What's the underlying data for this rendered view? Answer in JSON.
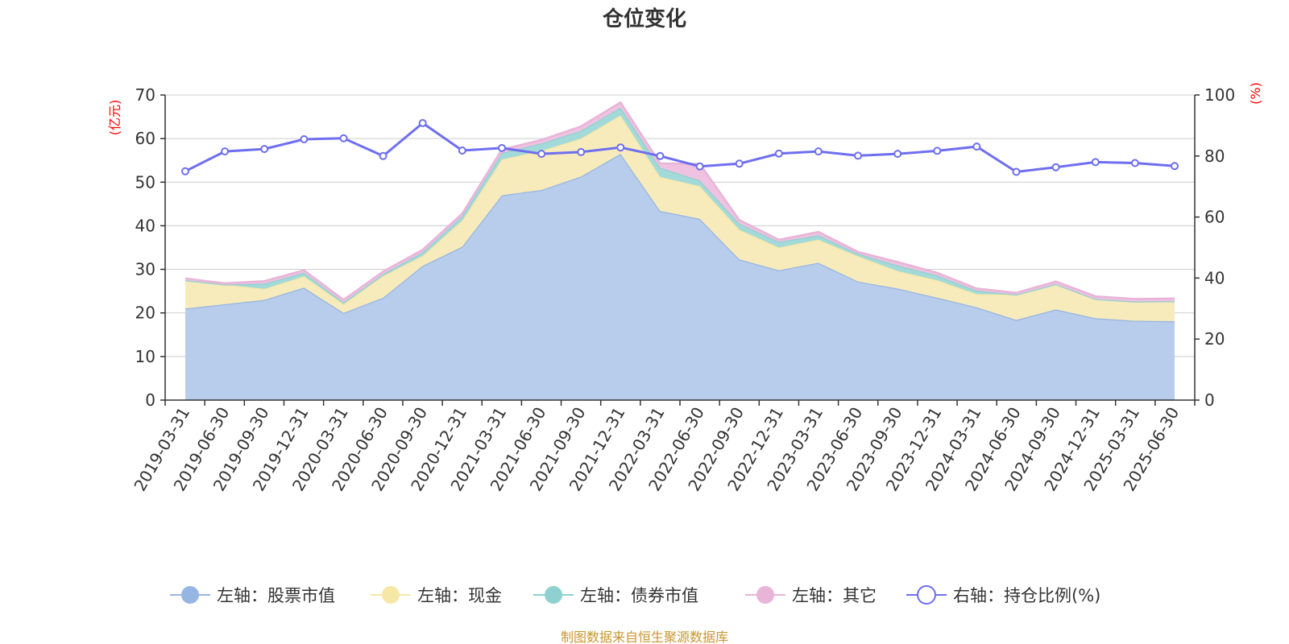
{
  "chart_data": {
    "type": "area",
    "title": "仓位变化",
    "y_left_unit": "(亿元)",
    "y_right_unit": "(%)",
    "ylim_left": [
      0,
      70
    ],
    "yticks_left": [
      "0",
      "10",
      "20",
      "30",
      "40",
      "50",
      "60",
      "70"
    ],
    "ylim_right": [
      0,
      100
    ],
    "yticks_right": [
      "0",
      "20",
      "40",
      "60",
      "80",
      "100"
    ],
    "grid": true,
    "legend_position": "bottom",
    "categories": [
      "2019-03-31",
      "2019-06-30",
      "2019-09-30",
      "2019-12-31",
      "2020-03-31",
      "2020-06-30",
      "2020-09-30",
      "2020-12-31",
      "2021-03-31",
      "2021-06-30",
      "2021-09-30",
      "2021-12-31",
      "2022-03-31",
      "2022-06-30",
      "2022-09-30",
      "2022-12-31",
      "2023-03-31",
      "2023-06-30",
      "2023-09-30",
      "2023-12-31",
      "2024-03-31",
      "2024-06-30",
      "2024-09-30",
      "2024-12-31",
      "2025-03-31",
      "2025-06-30"
    ],
    "stacked_series": [
      {
        "name": "左轴：股票市值",
        "axis": "left",
        "color": "#97b5e2",
        "fill": "#b7cdeb",
        "values": [
          21.0,
          22.0,
          23.0,
          25.8,
          20.0,
          23.5,
          30.8,
          35.2,
          47.0,
          48.2,
          51.3,
          56.5,
          43.4,
          41.6,
          32.3,
          29.8,
          31.5,
          27.2,
          25.6,
          23.5,
          21.3,
          18.4,
          20.8,
          18.8,
          18.2,
          18.1
        ]
      },
      {
        "name": "左轴：现金",
        "axis": "left",
        "color": "#f6e7a6",
        "fill": "#f8ebbb",
        "values": [
          6.5,
          4.5,
          2.5,
          2.6,
          2.0,
          5.0,
          2.3,
          6.0,
          8.2,
          9.0,
          8.7,
          8.8,
          7.8,
          7.5,
          6.8,
          5.2,
          5.3,
          5.8,
          4.0,
          4.0,
          3.0,
          5.8,
          5.8,
          4.4,
          4.4,
          4.6
        ]
      },
      {
        "name": "左轴：债券市值",
        "axis": "left",
        "color": "#8fd1d0",
        "fill": "#a3dad9",
        "values": [
          0,
          0,
          1.2,
          0.8,
          0.4,
          0.4,
          0.8,
          1.0,
          1.5,
          1.7,
          1.8,
          1.8,
          2.1,
          1.3,
          1.4,
          1.3,
          1.0,
          0.6,
          1.3,
          1.1,
          0.8,
          0,
          0,
          0,
          0,
          0
        ]
      },
      {
        "name": "左轴：其它",
        "axis": "left",
        "color": "#e8b4d8",
        "fill": "#eec2e0",
        "values": [
          0.4,
          0.3,
          0.6,
          0.6,
          0.6,
          0.6,
          0.6,
          0.6,
          0.8,
          0.8,
          1.0,
          1.2,
          1.0,
          3.8,
          0.8,
          0.5,
          0.8,
          0.4,
          0.8,
          0.6,
          0.5,
          0.4,
          0.6,
          0.6,
          0.6,
          0.6
        ]
      }
    ],
    "line_series": [
      {
        "name": "右轴：持仓比例(%)",
        "axis": "right",
        "color": "#6e6ef0",
        "values": [
          75.0,
          81.5,
          82.3,
          85.5,
          85.8,
          80.0,
          90.8,
          81.8,
          82.6,
          80.7,
          81.3,
          82.8,
          80.0,
          76.6,
          77.5,
          80.8,
          81.5,
          80.1,
          80.7,
          81.7,
          83.1,
          74.8,
          76.3,
          78.0,
          77.7,
          76.7
        ]
      }
    ]
  },
  "legend_items": [
    {
      "label": "左轴：股票市值",
      "marker": "filled-circle",
      "color": "#97b5e2"
    },
    {
      "label": "左轴：现金",
      "marker": "filled-circle",
      "color": "#f6e7a6"
    },
    {
      "label": "左轴：债券市值",
      "marker": "filled-circle",
      "color": "#8fd1d0"
    },
    {
      "label": "左轴：其它",
      "marker": "filled-circle",
      "color": "#e8b4d8"
    },
    {
      "label": "右轴：持仓比例(%)",
      "marker": "hollow-circle",
      "color": "#6e6ef0"
    }
  ],
  "source_text": "制图数据来自恒生聚源数据库"
}
